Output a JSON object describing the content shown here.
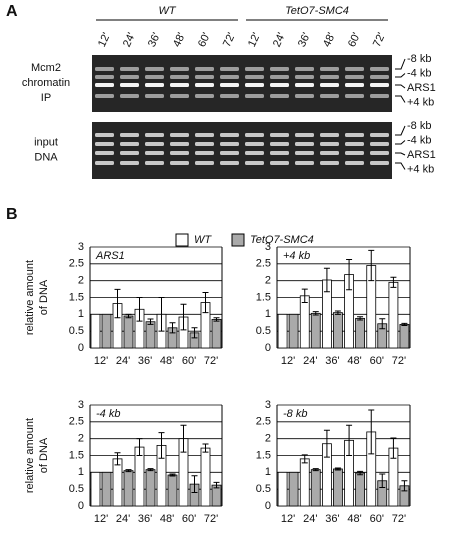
{
  "panels": [
    "A",
    "B"
  ],
  "gel": {
    "lanes": [
      "12'",
      "24'",
      "36'",
      "48'",
      "60'",
      "72'",
      "12'",
      "24'",
      "36'",
      "48'",
      "60'",
      "72'"
    ],
    "groups": [
      "WT",
      "TetO7-SMC4"
    ],
    "blots": [
      {
        "label": [
          "Mcm2",
          "chromatin",
          "IP"
        ],
        "markers": [
          "-8 kb",
          "-4 kb",
          "ARS1",
          "+4 kb"
        ]
      },
      {
        "label": [
          "input",
          "DNA"
        ],
        "markers": [
          "-8 kb",
          "-4 kb",
          "ARS1",
          "+4 kb"
        ]
      }
    ]
  },
  "chart_data": [
    {
      "type": "bar",
      "title": "ARS1",
      "ylabel": [
        "relative amount",
        "of DNA"
      ],
      "categories": [
        "12'",
        "24'",
        "36'",
        "48'",
        "60'",
        "72'"
      ],
      "series": [
        {
          "name": "WT",
          "color": "#ffffff",
          "values": [
            1,
            1.32,
            1.15,
            1.0,
            0.92,
            1.35
          ],
          "errors": [
            null,
            0.42,
            0.35,
            0.5,
            0.38,
            0.3
          ]
        },
        {
          "name": "TetO7-SMC4",
          "color": "#aaaaaa",
          "values": [
            1,
            0.95,
            0.78,
            0.6,
            0.45,
            0.85
          ],
          "errors": [
            null,
            0.05,
            0.08,
            0.15,
            0.15,
            0.05
          ]
        }
      ],
      "ylim": [
        0,
        3
      ],
      "yticks": [
        0,
        0.5,
        1,
        1.5,
        2,
        2.5,
        3
      ],
      "grid": true
    },
    {
      "type": "bar",
      "title": "+4 kb",
      "categories": [
        "12'",
        "24'",
        "36'",
        "48'",
        "60'",
        "72'"
      ],
      "series": [
        {
          "color": "#ffffff",
          "values": [
            1,
            1.55,
            2.02,
            2.18,
            2.45,
            1.95
          ],
          "errors": [
            null,
            0.2,
            0.35,
            0.45,
            0.45,
            0.15
          ]
        },
        {
          "color": "#aaaaaa",
          "values": [
            1,
            1.03,
            1.05,
            0.88,
            0.72,
            0.7
          ],
          "errors": [
            null,
            0.05,
            0.05,
            0.05,
            0.15,
            0.03
          ]
        }
      ],
      "ylim": [
        0,
        3
      ],
      "yticks": [
        0,
        0.5,
        1,
        1.5,
        2,
        2.5,
        3
      ],
      "grid": true
    },
    {
      "type": "bar",
      "title": "-4 kb",
      "ylabel": [
        "relative amount",
        "of DNA"
      ],
      "categories": [
        "12'",
        "24'",
        "36'",
        "48'",
        "60'",
        "72'"
      ],
      "series": [
        {
          "color": "#ffffff",
          "values": [
            1,
            1.4,
            1.75,
            1.8,
            2.0,
            1.72
          ],
          "errors": [
            null,
            0.18,
            0.25,
            0.38,
            0.4,
            0.12
          ]
        },
        {
          "color": "#aaaaaa",
          "values": [
            1,
            1.05,
            1.08,
            0.92,
            0.65,
            0.62
          ],
          "errors": [
            null,
            0.03,
            0.03,
            0.03,
            0.25,
            0.08
          ]
        }
      ],
      "ylim": [
        0,
        3
      ],
      "yticks": [
        0,
        0.5,
        1,
        1.5,
        2,
        2.5,
        3
      ],
      "grid": true
    },
    {
      "type": "bar",
      "title": "-8 kb",
      "categories": [
        "12'",
        "24'",
        "36'",
        "48'",
        "60'",
        "72'"
      ],
      "series": [
        {
          "color": "#ffffff",
          "values": [
            1,
            1.4,
            1.85,
            1.95,
            2.2,
            1.72
          ],
          "errors": [
            null,
            0.12,
            0.4,
            0.45,
            0.65,
            0.3
          ]
        },
        {
          "color": "#aaaaaa",
          "values": [
            1,
            1.08,
            1.1,
            0.98,
            0.75,
            0.6
          ],
          "errors": [
            null,
            0.03,
            0.03,
            0.05,
            0.2,
            0.15
          ]
        }
      ],
      "ylim": [
        0,
        3
      ],
      "yticks": [
        0,
        0.5,
        1,
        1.5,
        2,
        2.5,
        3
      ],
      "grid": true
    }
  ]
}
